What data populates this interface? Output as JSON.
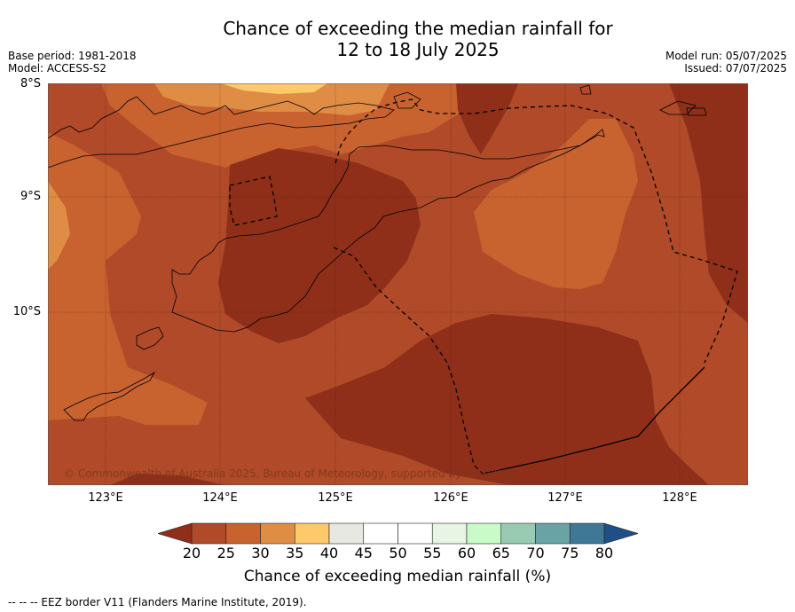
{
  "title": {
    "line1": "Chance of exceeding the median rainfall for",
    "line2": "12 to 18 July 2025"
  },
  "meta": {
    "base_period": "Base period: 1981-2018",
    "model": "Model: ACCESS-S2",
    "model_run": "Model run: 05/07/2025",
    "issued": "Issued: 07/07/2025"
  },
  "map": {
    "lat_labels": [
      "8°S",
      "9°S",
      "10°S"
    ],
    "lon_labels": [
      "123°E",
      "124°E",
      "125°E",
      "126°E",
      "127°E",
      "128°E"
    ],
    "copyright": "© Commonwealth of Australia 2025, Bureau of Meteorology, supported by COSPPac",
    "colors": {
      "lt20": "#8f2f1a",
      "c20_25": "#b04a28",
      "c25_30": "#c8622f",
      "c30_35": "#df8d45",
      "c35_40": "#fdc96b"
    }
  },
  "colorbar": {
    "ticks": [
      "20",
      "25",
      "30",
      "35",
      "40",
      "45",
      "50",
      "55",
      "60",
      "65",
      "70",
      "75",
      "80"
    ],
    "colors": [
      "#b04a28",
      "#c8622f",
      "#df8d45",
      "#fdc96b",
      "#e8e8e3",
      "#ffffff",
      "#ffffff",
      "#e8f5e4",
      "#c9fbc9",
      "#99cbb3",
      "#6aa3a6",
      "#3f7896"
    ],
    "under_color": "#8f2f1a",
    "over_color": "#1e4f86",
    "label": "Chance of exceeding median rainfall (%)"
  },
  "footnote": "--  --  -- EEZ border V11 (Flanders Marine Institute, 2019)."
}
